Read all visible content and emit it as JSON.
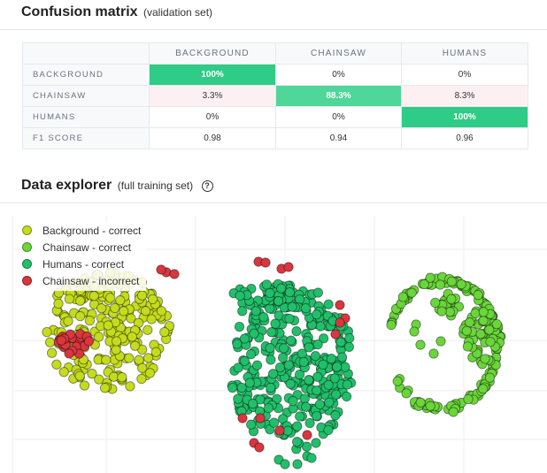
{
  "confusion_matrix": {
    "title": "Confusion matrix",
    "subtitle": "(validation set)",
    "columns": [
      "BACKGROUND",
      "CHAINSAW",
      "HUMANS"
    ],
    "rows": [
      {
        "label": "BACKGROUND",
        "values": [
          "100%",
          "0%",
          "0%"
        ],
        "styles": [
          "strong",
          "none",
          "none"
        ]
      },
      {
        "label": "CHAINSAW",
        "values": [
          "3.3%",
          "88.3%",
          "8.3%"
        ],
        "styles": [
          "pink",
          "mid",
          "pink"
        ]
      },
      {
        "label": "HUMANS",
        "values": [
          "0%",
          "0%",
          "100%"
        ],
        "styles": [
          "none",
          "none",
          "strong"
        ]
      },
      {
        "label": "F1 SCORE",
        "values": [
          "0.98",
          "0.94",
          "0.96"
        ],
        "styles": [
          "none",
          "none",
          "none"
        ]
      }
    ]
  },
  "data_explorer": {
    "title": "Data explorer",
    "subtitle": "(full training set)",
    "help_icon": "help-circle-icon",
    "help_glyph": "?"
  },
  "chart_data": {
    "type": "scatter",
    "grid": true,
    "legend_placement": "top-left",
    "series": [
      {
        "name": "Background - correct",
        "color": "#c5dc1c"
      },
      {
        "name": "Chainsaw - correct",
        "color": "#6ad63a"
      },
      {
        "name": "Humans - correct",
        "color": "#21bf6a"
      },
      {
        "name": "Chainsaw - incorrect",
        "color": "#d9363e"
      }
    ]
  }
}
